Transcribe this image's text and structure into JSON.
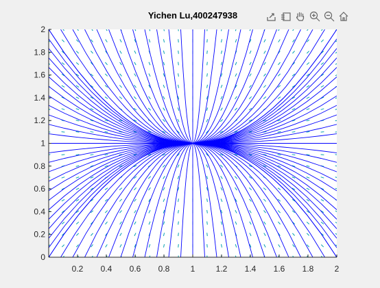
{
  "toolbar": {
    "items": [
      {
        "name": "export-icon"
      },
      {
        "name": "brush-icon"
      },
      {
        "name": "pan-hand-icon"
      },
      {
        "name": "zoom-in-icon"
      },
      {
        "name": "zoom-out-icon"
      },
      {
        "name": "home-icon"
      }
    ]
  },
  "chart_data": {
    "type": "line",
    "title": "Yichen Lu,400247938",
    "xlabel": "",
    "ylabel": "",
    "xlim": [
      0,
      2
    ],
    "ylim": [
      0,
      2
    ],
    "x_ticks": [
      "0.2",
      "0.4",
      "0.6",
      "0.8",
      "1",
      "1.2",
      "1.4",
      "1.6",
      "1.8",
      "2"
    ],
    "y_ticks": [
      "0",
      "0.2",
      "0.4",
      "0.6",
      "0.8",
      "1",
      "1.2",
      "1.4",
      "1.6",
      "1.8",
      "2"
    ],
    "grid": false,
    "equilibrium": [
      1,
      1
    ],
    "series": [
      {
        "kind": "streamlines",
        "color": "#0000ff"
      },
      {
        "kind": "direction_field",
        "color": "#00a0b0"
      }
    ]
  }
}
